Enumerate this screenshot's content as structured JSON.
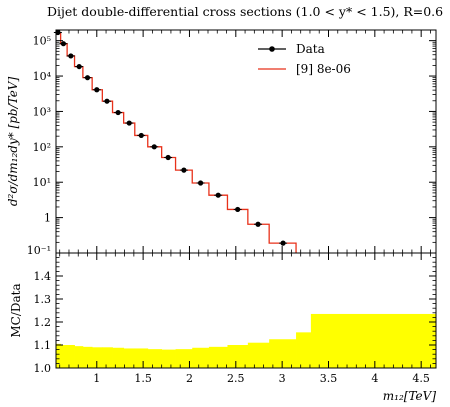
{
  "chart_data": [
    {
      "type": "line",
      "title": "Dijet double-differential cross sections (1.0 < y* < 1.5), R=0.6",
      "ylabel": "d²σ/dm₁₂dy* [pb/TeV]",
      "xlabel": "",
      "yscale": "log",
      "ylim": [
        0.1,
        200000
      ],
      "xlim": [
        0.56,
        4.66
      ],
      "grid": false,
      "legend_position": "top-right",
      "y_tick_labels": [
        "10⁻¹",
        "1",
        "10¹",
        "10²",
        "10³",
        "10⁴",
        "10⁵"
      ],
      "series": [
        {
          "name": "Data",
          "style": "points",
          "color": "#000000",
          "x": [
            0.58,
            0.64,
            0.72,
            0.81,
            0.9,
            1.0,
            1.11,
            1.23,
            1.35,
            1.48,
            1.62,
            1.77,
            1.94,
            2.12,
            2.31,
            2.52,
            2.74,
            3.01,
            3.23
          ],
          "y": [
            170000,
            82000,
            37000,
            18500,
            9000,
            4100,
            1950,
            930,
            470,
            210,
            100,
            50,
            22,
            9.5,
            4.3,
            1.7,
            0.65,
            0.19,
            0.06
          ]
        },
        {
          "name": "[9] 8e-06",
          "style": "step",
          "color": "#e8311a",
          "bin_edges": [
            0.56,
            0.61,
            0.68,
            0.76,
            0.85,
            0.95,
            1.06,
            1.17,
            1.29,
            1.41,
            1.55,
            1.7,
            1.85,
            2.03,
            2.21,
            2.41,
            2.63,
            2.86,
            3.15,
            3.31
          ],
          "values": [
            170000,
            82000,
            37000,
            18500,
            9000,
            4100,
            1950,
            930,
            470,
            210,
            100,
            50,
            22,
            9.5,
            4.3,
            1.7,
            0.65,
            0.19,
            0.06
          ]
        }
      ]
    },
    {
      "type": "area",
      "ylabel": "MC/Data",
      "xlabel": "m₁₂[TeV]",
      "xlim": [
        0.56,
        4.66
      ],
      "ylim": [
        1.0,
        1.5
      ],
      "x_ticks": [
        1,
        1.5,
        2,
        2.5,
        3,
        3.5,
        4,
        4.5
      ],
      "x_tick_labels": [
        "1",
        "1.5",
        "2",
        "2.5",
        "3",
        "3.5",
        "4",
        "4.5"
      ],
      "y_ticks": [
        1.0,
        1.1,
        1.2,
        1.3,
        1.4
      ],
      "y_tick_labels": [
        "1.0",
        "1.1",
        "1.2",
        "1.3",
        "1.4"
      ],
      "series": [
        {
          "style": "band",
          "color": "#ffff00",
          "bin_edges": [
            0.56,
            0.61,
            0.68,
            0.76,
            0.85,
            0.95,
            1.06,
            1.17,
            1.29,
            1.41,
            1.55,
            1.7,
            1.85,
            2.03,
            2.21,
            2.41,
            2.63,
            2.86,
            3.15,
            3.31,
            4.66
          ],
          "values": [
            1.105,
            1.1,
            1.1,
            1.095,
            1.092,
            1.09,
            1.09,
            1.088,
            1.085,
            1.085,
            1.082,
            1.08,
            1.082,
            1.088,
            1.092,
            1.1,
            1.11,
            1.125,
            1.155,
            1.235
          ]
        }
      ]
    }
  ]
}
